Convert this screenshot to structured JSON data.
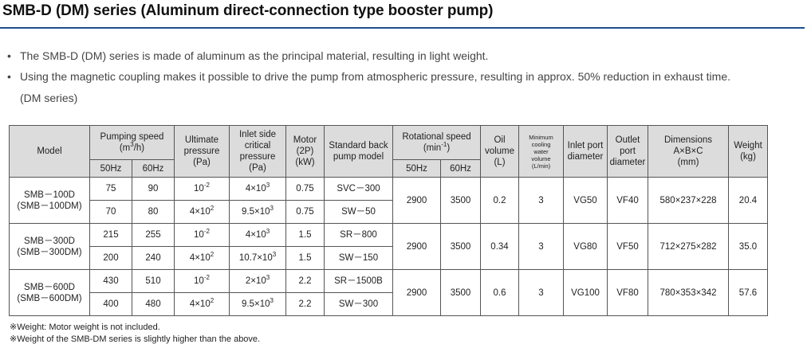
{
  "title": "SMB-D (DM) series (Aluminum direct-connection type booster pump)",
  "bullets": [
    "The SMB-D (DM) series is made of aluminum as the principal material, resulting in light weight.",
    "Using the magnetic coupling makes it possible to drive the pump from atmospheric pressure, resulting in approx. 50% reduction in exhaust time."
  ],
  "bullet_continuation": "(DM series)",
  "table": {
    "headers": {
      "model": "Model",
      "pumping_speed": "Pumping speed",
      "pumping_speed_unit_pre": "(m",
      "pumping_speed_unit_sup": "3",
      "pumping_speed_unit_post": "/h)",
      "hz50": "50Hz",
      "hz60": "60Hz",
      "ultimate_pressure": [
        "Ultimate",
        "pressure",
        "(Pa)"
      ],
      "inlet_side_pressure": [
        "Inlet side",
        "critical",
        "pressure",
        "(Pa)"
      ],
      "motor": [
        "Motor",
        "(2P)",
        "(kW)"
      ],
      "backing_pump": [
        "Standard back",
        "pump model"
      ],
      "rotational_speed": "Rotational speed",
      "rotational_unit_pre": "(min",
      "rotational_unit_sup": "-1",
      "rotational_unit_post": ")",
      "oil_volume": [
        "Oil",
        "volume",
        "(L)"
      ],
      "cooling_water": [
        "Minimum",
        "cooling",
        "water",
        "volume",
        "(L/min)"
      ],
      "inlet_port": [
        "Inlet port",
        "diameter"
      ],
      "outlet_port": [
        "Outlet",
        "port",
        "diameter"
      ],
      "dimensions": [
        "Dimensions",
        "A×B×C",
        "(mm)"
      ],
      "weight": [
        "Weight",
        "(kg)"
      ]
    },
    "models": [
      {
        "name": [
          "SMB－100D",
          "(SMB－100DM)"
        ],
        "rows": [
          {
            "speed50": "75",
            "speed60": "90",
            "ult_base": "10",
            "ult_exp": "-2",
            "inlet_base": "4×10",
            "inlet_exp": "3",
            "motor": "0.75",
            "backing": "SVC－300"
          },
          {
            "speed50": "70",
            "speed60": "80",
            "ult_base": "4×10",
            "ult_exp": "2",
            "inlet_base": "9.5×10",
            "inlet_exp": "3",
            "motor": "0.75",
            "backing": "SW－50"
          }
        ],
        "rot50": "2900",
        "rot60": "3500",
        "oil": "0.2",
        "water": "3",
        "inlet_port": "VG50",
        "outlet_port": "VF40",
        "dimensions": "580×237×228",
        "weight": "20.4"
      },
      {
        "name": [
          "SMB－300D",
          "(SMB－300DM)"
        ],
        "rows": [
          {
            "speed50": "215",
            "speed60": "255",
            "ult_base": "10",
            "ult_exp": "-2",
            "inlet_base": "4×10",
            "inlet_exp": "3",
            "motor": "1.5",
            "backing": "SR－800"
          },
          {
            "speed50": "200",
            "speed60": "240",
            "ult_base": "4×10",
            "ult_exp": "2",
            "inlet_base": "10.7×10",
            "inlet_exp": "3",
            "motor": "1.5",
            "backing": "SW－150"
          }
        ],
        "rot50": "2900",
        "rot60": "3500",
        "oil": "0.34",
        "water": "3",
        "inlet_port": "VG80",
        "outlet_port": "VF50",
        "dimensions": "712×275×282",
        "weight": "35.0"
      },
      {
        "name": [
          "SMB－600D",
          "(SMB－600DM)"
        ],
        "rows": [
          {
            "speed50": "430",
            "speed60": "510",
            "ult_base": "10",
            "ult_exp": "-2",
            "inlet_base": "2×10",
            "inlet_exp": "3",
            "motor": "2.2",
            "backing": "SR－1500B"
          },
          {
            "speed50": "400",
            "speed60": "480",
            "ult_base": "4×10",
            "ult_exp": "2",
            "inlet_base": "9.5×10",
            "inlet_exp": "3",
            "motor": "2.2",
            "backing": "SW－300"
          }
        ],
        "rot50": "2900",
        "rot60": "3500",
        "oil": "0.6",
        "water": "3",
        "inlet_port": "VG100",
        "outlet_port": "VF80",
        "dimensions": "780×353×342",
        "weight": "57.6"
      }
    ]
  },
  "notes": [
    "※Weight: Motor weight is not included.",
    "※Weight of the SMB-DM series is slightly higher than the above."
  ]
}
